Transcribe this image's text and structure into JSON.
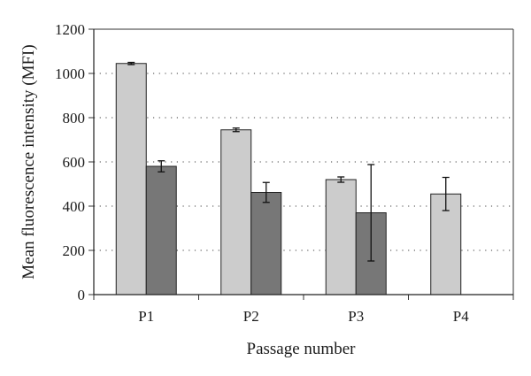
{
  "chart_data": {
    "type": "bar",
    "title": "",
    "xlabel": "Passage number",
    "ylabel": "Mean fluorescence intensity (MFI)",
    "categories": [
      "P1",
      "P2",
      "P3",
      "P4"
    ],
    "ylim": [
      0,
      1200
    ],
    "yticks": [
      0,
      200,
      400,
      600,
      800,
      1000,
      1200
    ],
    "grid": "horizontal-dotted",
    "legend": "none",
    "series": [
      {
        "color": "#cccccc",
        "values": [
          1045,
          745,
          520,
          455
        ],
        "errors": [
          5,
          8,
          12,
          75
        ]
      },
      {
        "color": "#777777",
        "values": [
          580,
          462,
          370,
          null
        ],
        "errors": [
          25,
          45,
          218,
          null
        ]
      }
    ]
  }
}
